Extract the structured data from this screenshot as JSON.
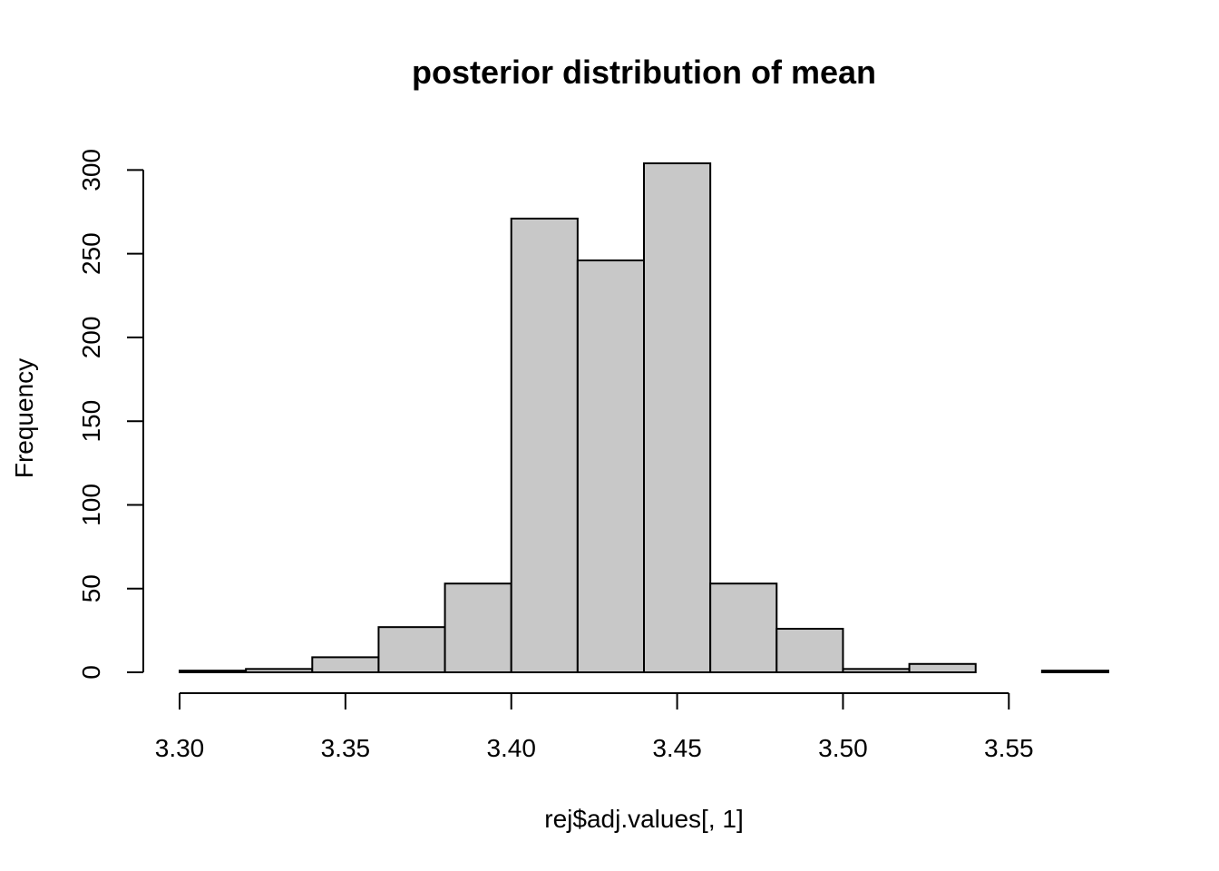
{
  "chart_data": {
    "type": "bar",
    "title": "posterior distribution of mean",
    "xlabel": "rej$adj.values[, 1]",
    "ylabel": "Frequency",
    "bins": [
      {
        "x0": 3.3,
        "x1": 3.32,
        "count": 1
      },
      {
        "x0": 3.32,
        "x1": 3.34,
        "count": 2
      },
      {
        "x0": 3.34,
        "x1": 3.36,
        "count": 9
      },
      {
        "x0": 3.36,
        "x1": 3.38,
        "count": 27
      },
      {
        "x0": 3.38,
        "x1": 3.4,
        "count": 53
      },
      {
        "x0": 3.4,
        "x1": 3.42,
        "count": 271
      },
      {
        "x0": 3.42,
        "x1": 3.44,
        "count": 246
      },
      {
        "x0": 3.44,
        "x1": 3.46,
        "count": 304
      },
      {
        "x0": 3.46,
        "x1": 3.48,
        "count": 53
      },
      {
        "x0": 3.48,
        "x1": 3.5,
        "count": 26
      },
      {
        "x0": 3.5,
        "x1": 3.52,
        "count": 2
      },
      {
        "x0": 3.52,
        "x1": 3.54,
        "count": 5
      },
      {
        "x0": 3.54,
        "x1": 3.56,
        "count": 0
      },
      {
        "x0": 3.56,
        "x1": 3.58,
        "count": 1
      }
    ],
    "xticks": [
      "3.30",
      "3.35",
      "3.40",
      "3.45",
      "3.50",
      "3.55"
    ],
    "yticks": [
      "0",
      "50",
      "100",
      "150",
      "200",
      "250",
      "300"
    ],
    "xlim": [
      3.3,
      3.58
    ],
    "ylim": [
      0,
      304
    ],
    "colors": {
      "bar_fill": "#c8c8c8",
      "bar_stroke": "#000000"
    },
    "grid": false,
    "legend": "none"
  }
}
